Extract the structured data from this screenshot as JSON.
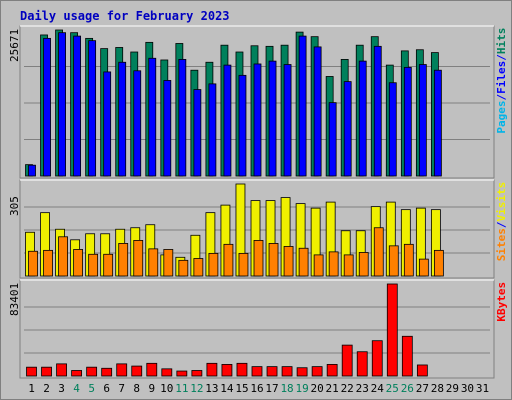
{
  "title": "Daily usage for February 2023",
  "colors": {
    "background": "#c0c0c0",
    "title": "#0000c0",
    "hits": "#00805c",
    "files": "#0000ff",
    "pages": "#00b4e8",
    "visits": "#f0f000",
    "sites": "#ff8000",
    "kbytes": "#ff0000",
    "weekend_label": "#00805c",
    "weekday_label": "#000000"
  },
  "x_labels": [
    "1",
    "2",
    "3",
    "4",
    "5",
    "6",
    "7",
    "8",
    "9",
    "10",
    "11",
    "12",
    "13",
    "14",
    "15",
    "16",
    "17",
    "18",
    "19",
    "20",
    "21",
    "22",
    "23",
    "24",
    "25",
    "26",
    "27",
    "28",
    "29",
    "30",
    "31"
  ],
  "weekend_days": [
    4,
    5,
    11,
    12,
    18,
    19,
    25,
    26
  ],
  "chart_data": [
    {
      "type": "bar",
      "name": "hits-files-pages",
      "ymax_label": "25671",
      "ylim": [
        0,
        25671
      ],
      "ylabel_parts": [
        {
          "text": "Pages",
          "color_key": "pages"
        },
        {
          "text": "/",
          "color_key": "files"
        },
        {
          "text": "Files",
          "color_key": "files"
        },
        {
          "text": "/",
          "color_key": "files"
        },
        {
          "text": "Hits",
          "color_key": "hits"
        }
      ],
      "series": [
        {
          "color_key": "hits",
          "values": [
            2000,
            24800,
            25671,
            25200,
            24200,
            22400,
            22600,
            21800,
            23500,
            20400,
            23300,
            18600,
            20000,
            23000,
            21800,
            22900,
            22800,
            23000,
            25300,
            24500,
            17500,
            20500,
            23000,
            24500,
            19500,
            22000,
            22200,
            21700,
            0,
            0,
            0
          ]
        },
        {
          "color_key": "files",
          "values": [
            1900,
            24200,
            25200,
            24600,
            23800,
            18300,
            20000,
            18500,
            20700,
            16800,
            20500,
            15200,
            16200,
            19500,
            17700,
            19700,
            20200,
            19600,
            24600,
            22700,
            12900,
            16600,
            20200,
            22800,
            16400,
            19100,
            19600,
            18600,
            0,
            0,
            0
          ]
        },
        {
          "color_key": "pages",
          "values": [
            0,
            0,
            0,
            0,
            0,
            0,
            0,
            0,
            0,
            0,
            0,
            0,
            0,
            0,
            0,
            0,
            0,
            0,
            0,
            0,
            0,
            0,
            0,
            0,
            0,
            0,
            0,
            0,
            0,
            0,
            0
          ]
        }
      ]
    },
    {
      "type": "bar",
      "name": "visits-sites",
      "ymax_label": "305",
      "ylim": [
        0,
        305
      ],
      "ylabel_parts": [
        {
          "text": "Sites",
          "color_key": "sites"
        },
        {
          "text": "/",
          "color_key": "files"
        },
        {
          "text": "Visits",
          "color_key": "visits"
        }
      ],
      "series": [
        {
          "color_key": "visits",
          "values": [
            145,
            210,
            155,
            120,
            140,
            140,
            155,
            160,
            170,
            70,
            62,
            135,
            210,
            235,
            305,
            250,
            250,
            260,
            240,
            225,
            245,
            150,
            150,
            230,
            245,
            220,
            225,
            220,
            0,
            0,
            0
          ]
        },
        {
          "color_key": "sites",
          "values": [
            82,
            85,
            130,
            88,
            72,
            72,
            108,
            118,
            90,
            88,
            52,
            58,
            75,
            105,
            75,
            118,
            108,
            98,
            92,
            70,
            80,
            70,
            78,
            160,
            100,
            105,
            56,
            85,
            0,
            0,
            0
          ]
        }
      ]
    },
    {
      "type": "bar",
      "name": "kbytes",
      "ymax_label": "83401",
      "ylim": [
        0,
        83401
      ],
      "ylabel_parts": [
        {
          "text": "KBytes",
          "color_key": "kbytes"
        }
      ],
      "series": [
        {
          "color_key": "kbytes",
          "values": [
            8000,
            8000,
            11000,
            5000,
            8000,
            7000,
            11000,
            9000,
            11500,
            6500,
            4500,
            5000,
            11500,
            10500,
            11500,
            8500,
            8500,
            8500,
            7500,
            8500,
            10500,
            28000,
            22000,
            32000,
            83401,
            36000,
            10000,
            0,
            0,
            0,
            0
          ]
        }
      ]
    }
  ]
}
